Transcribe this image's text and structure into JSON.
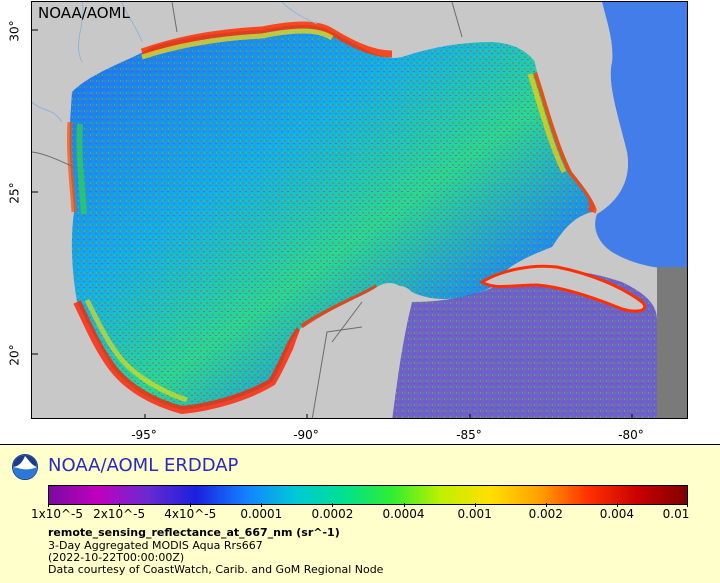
{
  "map": {
    "credit": "NOAA/AOML",
    "x_ticks": [
      "-95°",
      "-90°",
      "-85°",
      "-80°"
    ],
    "y_ticks": [
      "30°",
      "25°",
      "20°"
    ],
    "colors": {
      "land": "#c8c8c8",
      "nodata": "#7a7a7a",
      "borders": "#6c6c6c",
      "rivers": "#8fb4d9"
    }
  },
  "legend": {
    "brand": "NOAA/AOML ERDDAP",
    "colorbar_ticks": [
      "1x10^-5",
      "2x10^-5",
      "4x10^-5",
      "0.0001",
      "0.0002",
      "0.0004",
      "0.001",
      "0.002",
      "0.004",
      "0.01"
    ],
    "colorbar_colors": [
      "#7a0aa0",
      "#c000c0",
      "#6a2ad0",
      "#1a20e0",
      "#1480ff",
      "#00c8d8",
      "#00e090",
      "#30ee30",
      "#c0f000",
      "#ffe000",
      "#ffa000",
      "#ff3000",
      "#c80000",
      "#800000"
    ],
    "variable": "remote_sensing_reflectance_at_667_nm (sr^-1)",
    "dataset": "3-Day Aggregated MODIS Aqua Rrs667",
    "time": "(2022-10-22T00:00:00Z)",
    "credit": "Data courtesy of CoastWatch, Carib. and GoM Regional Node"
  }
}
